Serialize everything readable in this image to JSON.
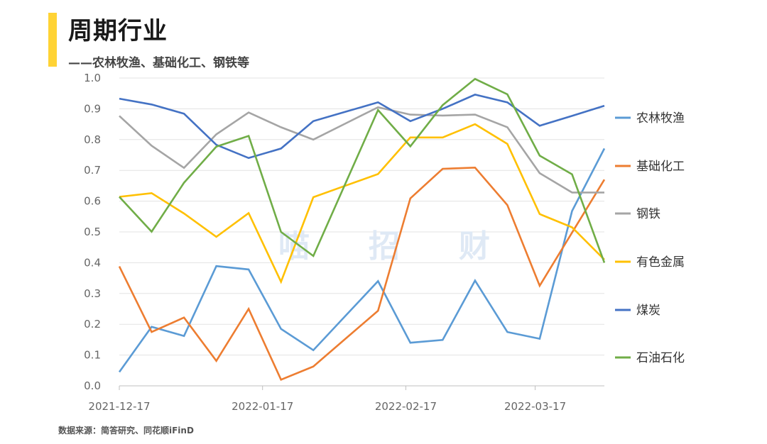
{
  "header": {
    "title": "周期行业",
    "subtitle": "——农林牧渔、基础化工、钢铁等",
    "accent_color": "#ffd335"
  },
  "footer": {
    "source": "数据来源：简答研究、同花顺iFinD"
  },
  "watermark": [
    "喵",
    "招",
    "财"
  ],
  "chart_data": {
    "type": "line",
    "x": [
      "2021-12-17",
      "2021-12-24",
      "2021-12-31",
      "2022-01-07",
      "2022-01-14",
      "2022-01-21",
      "2022-01-28",
      "2022-02-04",
      "2022-02-11",
      "2022-02-18",
      "2022-02-25",
      "2022-03-04",
      "2022-03-11",
      "2022-03-18",
      "2022-03-25",
      "2022-04-01"
    ],
    "x_tick_labels": [
      "2021-12-17",
      "2022-01-17",
      "2022-02-17",
      "2022-03-17"
    ],
    "x_tick_positions": [
      0,
      4.43,
      8.86,
      12.86
    ],
    "ylim": [
      0,
      1.0
    ],
    "y_ticks": [
      "0.0",
      "0.1",
      "0.2",
      "0.3",
      "0.4",
      "0.5",
      "0.6",
      "0.7",
      "0.8",
      "0.9",
      "1.0"
    ],
    "grid": true,
    "legend_position": "right",
    "series": [
      {
        "name": "农林牧渔",
        "color": "#5b9bd5",
        "values": [
          0.045,
          0.192,
          0.162,
          0.389,
          0.378,
          0.185,
          0.116,
          null,
          0.34,
          0.14,
          0.149,
          0.342,
          0.175,
          0.153,
          0.568,
          0.771
        ]
      },
      {
        "name": "基础化工",
        "color": "#ed7d31",
        "values": [
          0.388,
          0.175,
          0.222,
          0.081,
          0.25,
          0.02,
          0.063,
          null,
          0.244,
          0.609,
          0.705,
          0.709,
          0.587,
          0.325,
          0.498,
          0.67
        ]
      },
      {
        "name": "钢铁",
        "color": "#a5a5a5",
        "values": [
          0.877,
          0.78,
          0.708,
          0.817,
          0.888,
          0.84,
          0.8,
          null,
          0.905,
          0.881,
          0.878,
          0.881,
          0.84,
          0.691,
          0.628,
          0.628
        ]
      },
      {
        "name": "有色金属",
        "color": "#ffc000",
        "values": [
          0.614,
          0.626,
          0.56,
          0.484,
          0.561,
          0.338,
          0.613,
          null,
          0.688,
          0.807,
          0.807,
          0.85,
          0.786,
          0.558,
          0.515,
          0.41
        ]
      },
      {
        "name": "煤炭",
        "color": "#4472c4",
        "values": [
          0.933,
          0.914,
          0.884,
          0.783,
          0.74,
          0.771,
          0.86,
          null,
          0.921,
          0.86,
          0.9,
          0.946,
          0.921,
          0.845,
          0.877,
          0.91
        ]
      },
      {
        "name": "石油石化",
        "color": "#70ad47",
        "values": [
          0.614,
          0.501,
          0.66,
          0.777,
          0.812,
          0.5,
          0.422,
          null,
          0.896,
          0.778,
          0.912,
          0.997,
          0.947,
          0.748,
          0.687,
          0.4
        ]
      }
    ]
  }
}
